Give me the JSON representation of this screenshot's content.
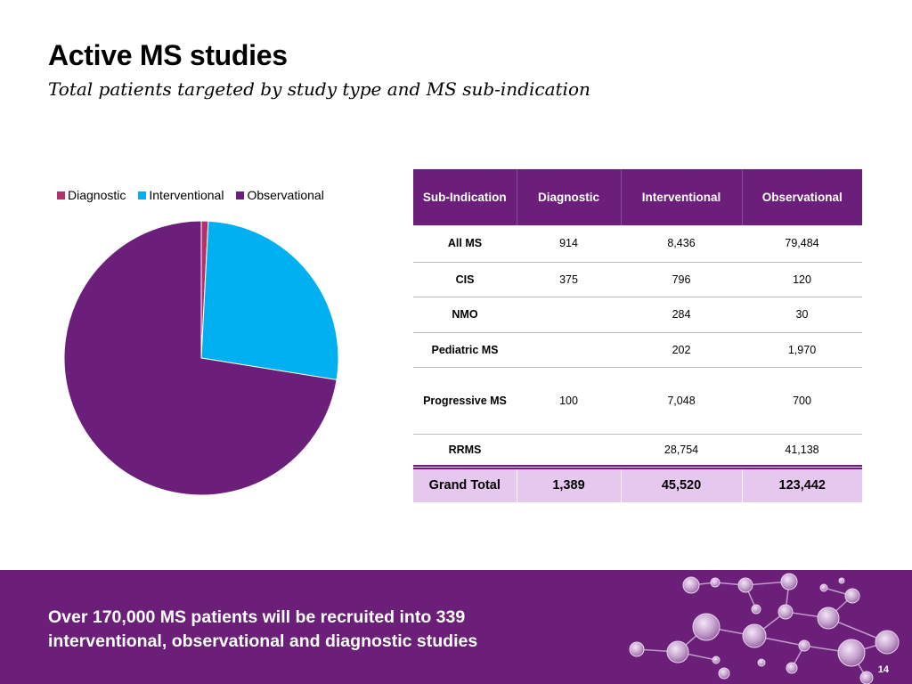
{
  "header": {
    "title": "Active MS studies",
    "subtitle": "Total patients targeted by study type and MS sub-indication"
  },
  "colors": {
    "diagnostic": "#b5306f",
    "interventional": "#00b0f0",
    "observational": "#6c1f7a",
    "table_header": "#6c1f7a",
    "grand_total_bg": "#e6c8ee",
    "footer_bg": "#6b1f79"
  },
  "chart_data": [
    {
      "type": "pie",
      "title": "",
      "legend_position": "top",
      "categories": [
        "Diagnostic",
        "Interventional",
        "Observational"
      ],
      "values": [
        1389,
        45520,
        123442
      ],
      "colors": [
        "#b5306f",
        "#00b0f0",
        "#6c1f7a"
      ]
    },
    {
      "type": "table",
      "columns": [
        "Sub-Indication",
        "Diagnostic",
        "Interventional",
        "Observational"
      ],
      "rows": [
        [
          "All MS",
          "914",
          "8,436",
          "79,484"
        ],
        [
          "CIS",
          "375",
          "796",
          "120"
        ],
        [
          "NMO",
          "",
          "284",
          "30"
        ],
        [
          "Pediatric MS",
          "",
          "202",
          "1,970"
        ],
        [
          "Progressive MS",
          "100",
          "7,048",
          "700"
        ],
        [
          "RRMS",
          "",
          "28,754",
          "41,138"
        ]
      ],
      "total": [
        "Grand Total",
        "1,389",
        "45,520",
        "123,442"
      ]
    }
  ],
  "footer": {
    "line1": "Over 170,000 MS patients will be recruited into 339",
    "line2": "interventional, observational and diagnostic studies",
    "page_number": "14"
  },
  "decoration": {
    "molecule_icon": "molecule-network-icon"
  }
}
